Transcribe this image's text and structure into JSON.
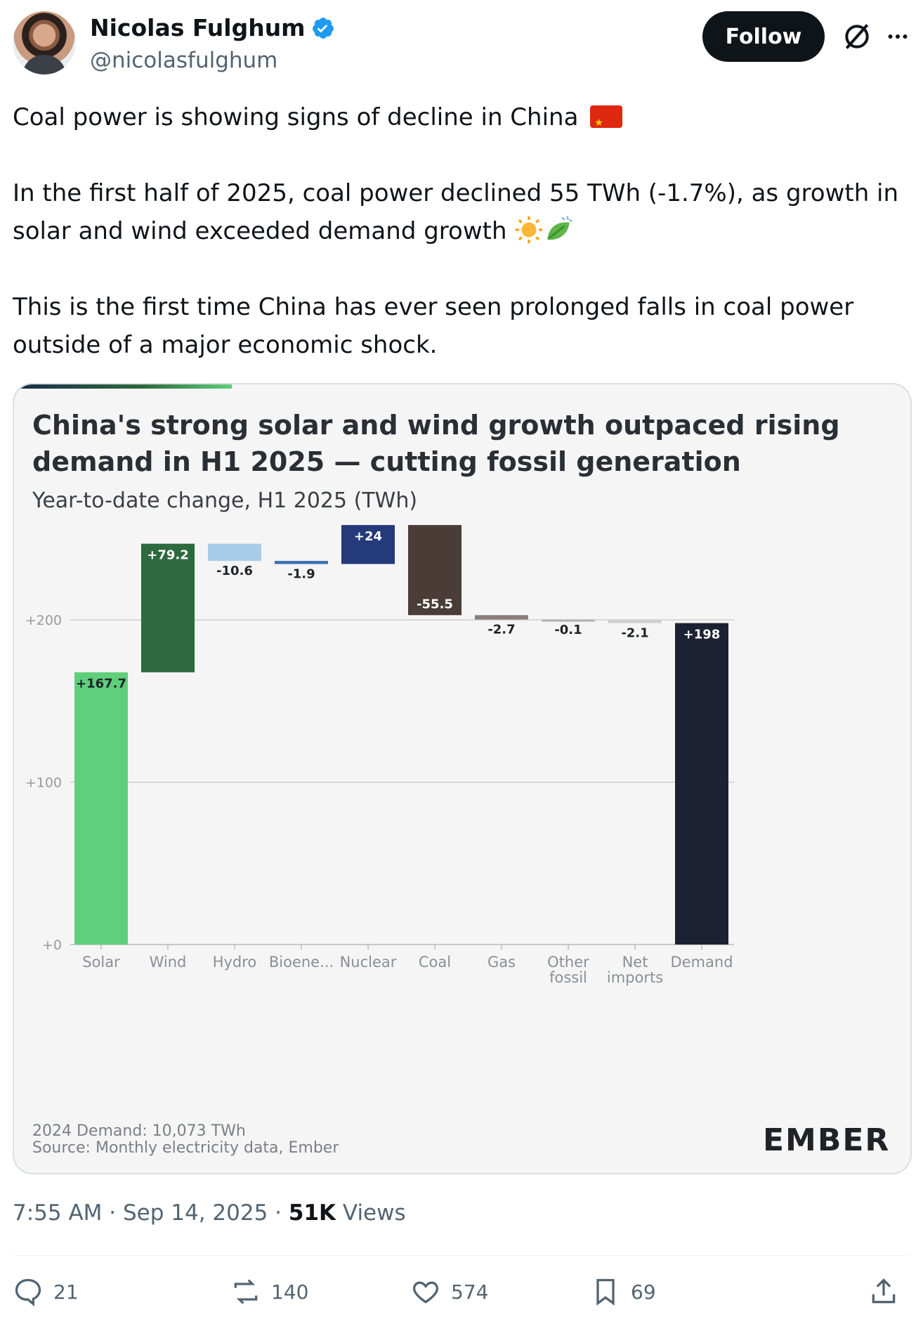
{
  "author": {
    "name": "Nicolas Fulghum",
    "handle": "@nicolasfulghum"
  },
  "follow_label": "Follow",
  "tweet": {
    "line1": "Coal power is showing signs of decline in China",
    "line2": "In the first half of 2025, coal power declined 55 TWh (-1.7%), as growth in solar and wind exceeded demand growth",
    "line3": "This is the first time China has ever seen prolonged falls in coal power outside of a major economic shock."
  },
  "chart_data": {
    "type": "waterfall",
    "title": "China's strong solar and wind growth outpaced rising demand in H1 2025 — cutting fossil generation",
    "subtitle": "Year-to-date change, H1 2025 (TWh)",
    "categories": [
      "Solar",
      "Wind",
      "Hydro",
      "Bioene...",
      "Nuclear",
      "Coal",
      "Gas",
      "Other fossil",
      "Net imports",
      "Demand"
    ],
    "values": [
      167.7,
      79.2,
      -10.6,
      -1.9,
      24,
      -55.5,
      -2.7,
      -0.1,
      -2.1,
      198
    ],
    "value_labels": [
      "+167.7",
      "+79.2",
      "-10.6",
      "-1.9",
      "+24",
      "-55.5",
      "-2.7",
      "-0.1",
      "-2.1",
      "+198"
    ],
    "colors": [
      "#5fcf7b",
      "#2d6a3e",
      "#a7cde9",
      "#3b6db0",
      "#253a7a",
      "#4a3d38",
      "#8a7e7a",
      "#b8b0ad",
      "#cfcfcf",
      "#1c2233"
    ],
    "y_ticks": [
      "+0",
      "+100",
      "+200"
    ],
    "y_tick_values": [
      0,
      100,
      200
    ],
    "ylim": [
      0,
      258
    ],
    "grid": true
  },
  "footnote": "2024 Demand: 10,073 TWh",
  "source": "Source: Monthly electricity data, Ember",
  "logo": "EMBER",
  "meta": {
    "time": "7:55 AM",
    "date": "Sep 14, 2025",
    "views_count": "51K",
    "views_label": "Views"
  },
  "actions": {
    "replies": "21",
    "reposts": "140",
    "likes": "574",
    "bookmarks": "69"
  }
}
